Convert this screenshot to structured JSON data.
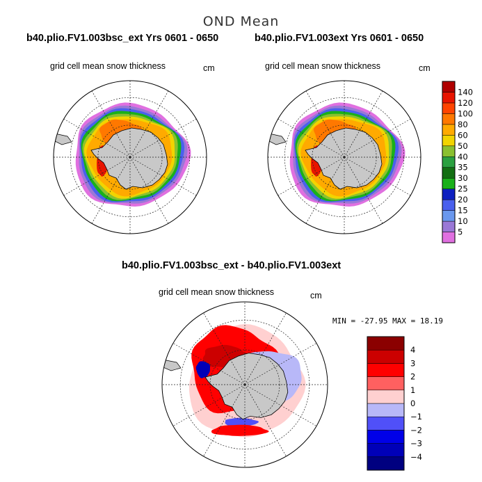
{
  "figure": {
    "title": "OND Mean",
    "panel_left": {
      "run": "b40.plio.FV1.003bsc_ext  Yrs 0601 - 0650",
      "variable": "grid cell mean snow thickness",
      "units": "cm"
    },
    "panel_right": {
      "run": "b40.plio.FV1.003ext  Yrs 0601 - 0650",
      "variable": "grid cell mean snow thickness",
      "units": "cm"
    },
    "panel_diff": {
      "run": "b40.plio.FV1.003bsc_ext - b40.plio.FV1.003ext",
      "variable": "grid cell mean snow thickness",
      "units": "cm",
      "minmax": "MIN = -27.95 MAX =  18.19"
    }
  },
  "chart_data": [
    {
      "type": "heatmap",
      "projection": "south-polar-stereographic",
      "title": "b40.plio.FV1.003bsc_ext  Yrs 0601 - 0650",
      "variable": "grid cell mean snow thickness",
      "units": "cm",
      "colorbar": {
        "levels": [
          5,
          10,
          15,
          20,
          25,
          30,
          35,
          40,
          50,
          60,
          80,
          100,
          120,
          140
        ],
        "colors": [
          "#e070e0",
          "#9a78d6",
          "#6a98ee",
          "#4a60ee",
          "#0d20c0",
          "#1ab01a",
          "#126e12",
          "#2aa040",
          "#8ac030",
          "#f2d400",
          "#ffaa00",
          "#ff7800",
          "#ff4400",
          "#e81400",
          "#b00000"
        ]
      }
    },
    {
      "type": "heatmap",
      "projection": "south-polar-stereographic",
      "title": "b40.plio.FV1.003ext  Yrs 0601 - 0650",
      "variable": "grid cell mean snow thickness",
      "units": "cm"
    },
    {
      "type": "heatmap",
      "projection": "south-polar-stereographic",
      "title": "b40.plio.FV1.003bsc_ext - b40.plio.FV1.003ext",
      "variable": "grid cell mean snow thickness",
      "units": "cm",
      "min": -27.95,
      "max": 18.19,
      "colorbar": {
        "levels": [
          -4,
          -3,
          -2,
          -1,
          0,
          1,
          2,
          3,
          4
        ],
        "colors": [
          "#000080",
          "#0000b8",
          "#0000e8",
          "#5050f8",
          "#b8b8f8",
          "#ffd0d0",
          "#ff6060",
          "#ff0000",
          "#cc0000",
          "#8b0000"
        ]
      }
    }
  ]
}
